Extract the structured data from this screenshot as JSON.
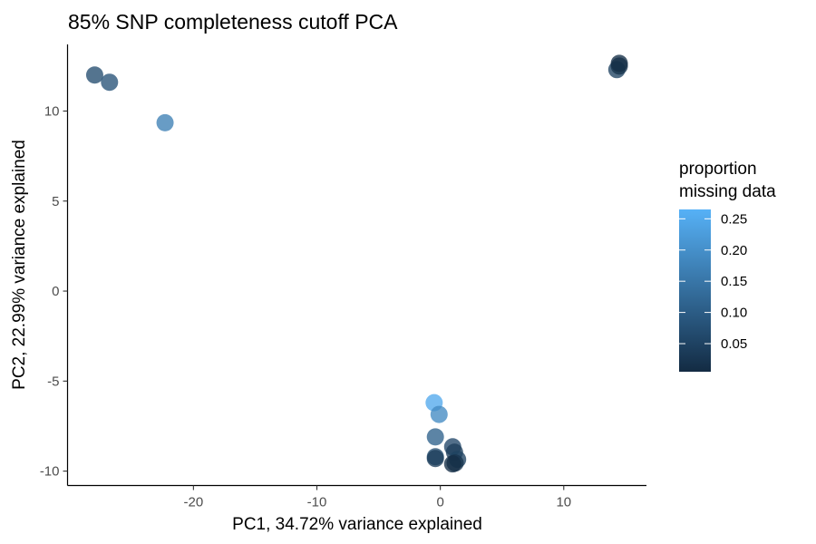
{
  "chart_data": {
    "type": "scatter",
    "title": "85% SNP completeness cutoff PCA",
    "xlabel": "PC1, 34.72% variance explained",
    "ylabel": "PC2, 22.99% variance explained",
    "xlim": [
      -30.2,
      16.7
    ],
    "ylim": [
      -10.8,
      13.7
    ],
    "xticks": [
      -20,
      -10,
      0,
      10
    ],
    "yticks": [
      -10,
      -5,
      0,
      5,
      10
    ],
    "xtick_labels": [
      "-20",
      "-10",
      "0",
      "10"
    ],
    "ytick_labels": [
      "-10",
      "-5",
      "0",
      "5",
      "10"
    ],
    "grid": false,
    "legend": {
      "title": "proportion\nmissing data",
      "placement": "right",
      "colors": {
        "low": "#132B43",
        "high": "#56B1F7"
      },
      "range": [
        0.005,
        0.265
      ],
      "ticks": [
        0.05,
        0.1,
        0.15,
        0.2,
        0.25
      ],
      "tick_labels": [
        "0.05",
        "0.10",
        "0.15",
        "0.20",
        "0.25"
      ]
    },
    "points": [
      {
        "x": -28.0,
        "y": 12.0,
        "missing": 0.07
      },
      {
        "x": -26.8,
        "y": 11.6,
        "missing": 0.08
      },
      {
        "x": -22.3,
        "y": 9.35,
        "missing": 0.17
      },
      {
        "x": 14.3,
        "y": 12.3,
        "missing": 0.05
      },
      {
        "x": 14.5,
        "y": 12.5,
        "missing": 0.02
      },
      {
        "x": 14.5,
        "y": 12.65,
        "missing": 0.01
      },
      {
        "x": -0.5,
        "y": -6.2,
        "missing": 0.25
      },
      {
        "x": -0.1,
        "y": -6.85,
        "missing": 0.19
      },
      {
        "x": -0.4,
        "y": -8.1,
        "missing": 0.11
      },
      {
        "x": -0.4,
        "y": -9.2,
        "missing": 0.07
      },
      {
        "x": -0.4,
        "y": -9.3,
        "missing": 0.04
      },
      {
        "x": 1.0,
        "y": -8.65,
        "missing": 0.06
      },
      {
        "x": 1.15,
        "y": -8.95,
        "missing": 0.04
      },
      {
        "x": 1.4,
        "y": -9.35,
        "missing": 0.05
      },
      {
        "x": 1.2,
        "y": -9.55,
        "missing": 0.02
      },
      {
        "x": 1.0,
        "y": -9.6,
        "missing": 0.01
      }
    ]
  }
}
